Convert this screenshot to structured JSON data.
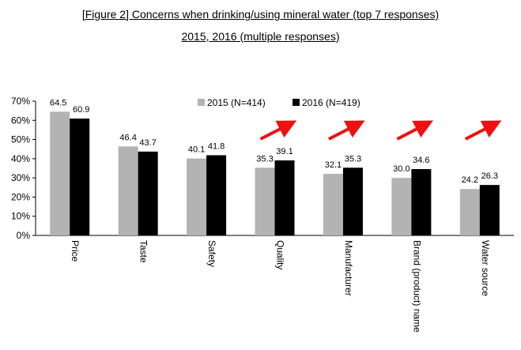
{
  "title_line1": "[Figure 2] Concerns when drinking/using mineral water (top 7 responses) ",
  "title_line2": "2015, 2016 (multiple responses)",
  "colors": {
    "s2015": "#b3b3b3",
    "s2016": "#000000",
    "arrow": "#ee1111"
  },
  "chart_data": {
    "type": "bar",
    "categories": [
      "Price",
      "Taste",
      "Safety",
      "Quality",
      "Manufacturer",
      "Brand (product) name",
      "Water source"
    ],
    "series": [
      {
        "name": "2015 (N=414)",
        "values": [
          64.5,
          46.4,
          40.1,
          35.3,
          32.1,
          30.0,
          24.2
        ]
      },
      {
        "name": "2016 (N=419)",
        "values": [
          60.9,
          43.7,
          41.8,
          39.1,
          35.3,
          34.6,
          26.3
        ]
      }
    ],
    "value_labels": [
      [
        "64.5",
        "46.4",
        "40.1",
        "35.3",
        "32.1",
        "30.0",
        "24.2"
      ],
      [
        "60.9",
        "43.7",
        "41.8",
        "39.1",
        "35.3",
        "34.6",
        "26.3"
      ]
    ],
    "ylim": [
      0,
      70
    ],
    "yticks": [
      "0%",
      "10%",
      "20%",
      "30%",
      "40%",
      "50%",
      "60%",
      "70%"
    ],
    "legend_position": "top",
    "upward_arrows_on": [
      "Quality",
      "Manufacturer",
      "Brand (product) name",
      "Water source"
    ],
    "grid": false
  }
}
